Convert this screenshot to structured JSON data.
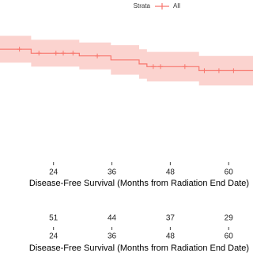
{
  "chart_data": {
    "type": "km",
    "legend_title": "Strata",
    "x_label": "Disease-Free Survival (Months from Radiation End Date)",
    "color": "#f8766d",
    "band_color": "#fbd3cf",
    "xlim": [
      13,
      65
    ],
    "ylim": [
      0,
      1
    ],
    "xticks": [
      24,
      36,
      48,
      60
    ],
    "series": [
      {
        "name": "All",
        "x": [
          13,
          19.4,
          29.3,
          35.8,
          41.6,
          43.2,
          53.9,
          65
        ],
        "values": [
          0.84,
          0.81,
          0.79,
          0.76,
          0.73,
          0.71,
          0.68,
          0.68
        ],
        "lower": [
          0.74,
          0.71,
          0.69,
          0.65,
          0.62,
          0.6,
          0.57,
          0.57
        ],
        "upper": [
          0.94,
          0.91,
          0.89,
          0.87,
          0.84,
          0.82,
          0.79,
          0.79
        ],
        "censor_x": [
          17,
          21,
          24.5,
          26,
          28,
          33,
          44.5,
          46,
          51,
          55,
          58,
          61
        ],
        "censor_values": [
          0.84,
          0.81,
          0.81,
          0.81,
          0.81,
          0.79,
          0.71,
          0.71,
          0.71,
          0.68,
          0.68,
          0.68
        ]
      }
    ],
    "risk_table": {
      "x": [
        24,
        36,
        48,
        60
      ],
      "values": [
        51,
        44,
        37,
        29
      ]
    }
  }
}
